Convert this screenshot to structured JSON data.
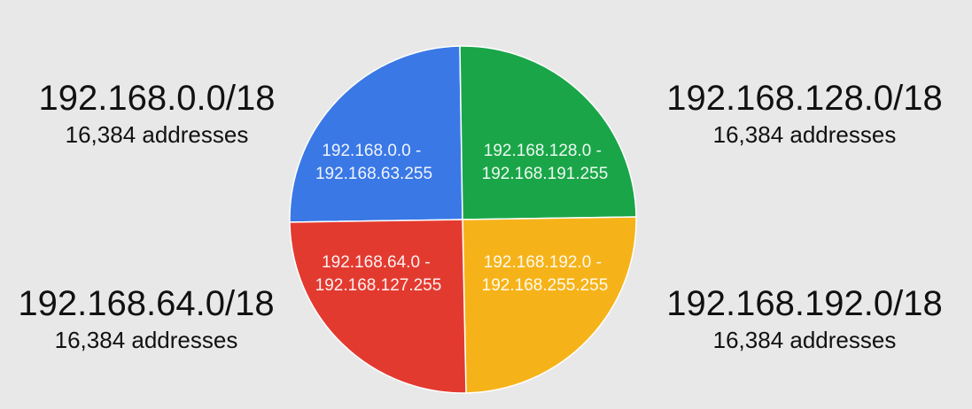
{
  "colors": {
    "background": "#e8e8e8",
    "text": "#111111",
    "quadrant_blue": "#3a78e6",
    "quadrant_green": "#1aa648",
    "quadrant_red": "#e33a30",
    "quadrant_yellow": "#f6b319",
    "quadrant_text": "#ffffff"
  },
  "subnets": [
    {
      "id": "top-left",
      "cidr": "192.168.0.0/18",
      "count": "16,384 addresses",
      "range_start": "192.168.0.0 -",
      "range_end": "192.168.63.255",
      "color": "#3a78e6"
    },
    {
      "id": "top-right",
      "cidr": "192.168.128.0/18",
      "count": "16,384 addresses",
      "range_start": "192.168.128.0 -",
      "range_end": "192.168.191.255",
      "color": "#1aa648"
    },
    {
      "id": "bottom-left",
      "cidr": "192.168.64.0/18",
      "count": "16,384 addresses",
      "range_start": "192.168.64.0 -",
      "range_end": "192.168.127.255",
      "color": "#e33a30"
    },
    {
      "id": "bottom-right",
      "cidr": "192.168.192.0/18",
      "count": "16,384 addresses",
      "range_start": "192.168.192.0 -",
      "range_end": "192.168.255.255",
      "color": "#f6b319"
    }
  ]
}
